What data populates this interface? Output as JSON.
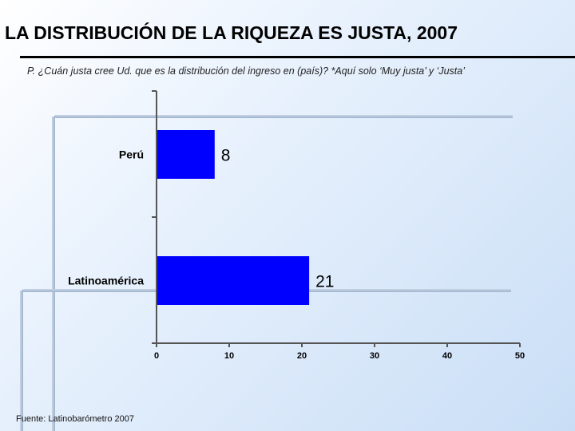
{
  "slide": {
    "title": "LA DISTRIBUCIÓN DE LA RIQUEZA ES JUSTA, 2007",
    "subtitle": "P. ¿Cuán justa cree Ud. que es la distribución del ingreso en (país)? *Aquí solo ‘Muy justa’ y ‘Justa’",
    "source": "Fuente: Latinobarómetro 2007"
  },
  "chart_data": {
    "type": "bar",
    "orientation": "horizontal",
    "categories": [
      "Perú",
      "Latinoamérica"
    ],
    "values": [
      8,
      21
    ],
    "xlim": [
      0,
      50
    ],
    "xticks": [
      0,
      10,
      20,
      30,
      40,
      50
    ],
    "bar_color": "#0000ff",
    "title": "LA DISTRIBUCIÓN DE LA RIQUEZA ES JUSTA, 2007",
    "xlabel": "",
    "ylabel": "",
    "legend": "none",
    "grid": false
  }
}
